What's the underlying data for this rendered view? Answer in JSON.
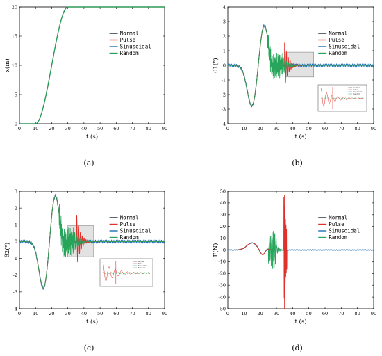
{
  "colors": {
    "normal": "#222222",
    "pulse": "#e0302b",
    "sinusoidal": "#1f6fb4",
    "random": "#27a55a"
  },
  "legend_labels": [
    "Normal",
    "Pulse",
    "Sinusoidal",
    "Random"
  ],
  "chart_data": [
    {
      "panel": "(a)",
      "type": "line",
      "xlabel": "t (s)",
      "ylabel": "x(m)",
      "xlim": [
        0,
        90
      ],
      "ylim": [
        0,
        20
      ],
      "xticks": [
        0,
        10,
        20,
        30,
        40,
        50,
        60,
        70,
        80,
        90
      ],
      "yticks": [
        0,
        5,
        10,
        15,
        20
      ],
      "legend": "upper-right",
      "series": [
        {
          "name": "Normal",
          "description": "smooth S-curve rising from 0 at t≈10 to 20 at t≈30, then constant"
        },
        {
          "name": "Pulse"
        },
        {
          "name": "Sinusoidal"
        },
        {
          "name": "Random"
        }
      ],
      "x": [
        0,
        10,
        12,
        14,
        16,
        18,
        20,
        22,
        24,
        26,
        28,
        30,
        40,
        50,
        60,
        70,
        80,
        90
      ],
      "y": [
        0,
        0,
        0.7,
        2.3,
        4.8,
        7.8,
        11.0,
        14.2,
        16.9,
        18.7,
        19.7,
        20,
        20,
        20,
        20,
        20,
        20,
        20
      ]
    },
    {
      "panel": "(b)",
      "type": "line",
      "xlabel": "t (s)",
      "ylabel": "θ1(°)",
      "xlim": [
        0,
        90
      ],
      "ylim": [
        -4,
        4
      ],
      "xticks": [
        0,
        10,
        20,
        30,
        40,
        50,
        60,
        70,
        80,
        90
      ],
      "yticks": [
        -4,
        -3,
        -2,
        -1,
        0,
        1,
        2,
        3,
        4
      ],
      "legend": "upper-right",
      "zoom_box": {
        "x": [
          36,
          53
        ],
        "y": [
          -0.8,
          0.9
        ]
      },
      "series": [
        {
          "name": "Normal"
        },
        {
          "name": "Pulse"
        },
        {
          "name": "Sinusoidal"
        },
        {
          "name": "Random"
        }
      ]
    },
    {
      "panel": "(c)",
      "type": "line",
      "xlabel": "t (s)",
      "ylabel": "θ2(°)",
      "xlim": [
        0,
        90
      ],
      "ylim": [
        -4,
        3
      ],
      "xticks": [
        0,
        10,
        20,
        30,
        40,
        50,
        60,
        70,
        80,
        90
      ],
      "yticks": [
        -4,
        -3,
        -2,
        -1,
        0,
        1,
        2,
        3
      ],
      "legend": "upper-right",
      "zoom_box": {
        "x": [
          30,
          46
        ],
        "y": [
          -0.9,
          0.95
        ]
      },
      "series": [
        {
          "name": "Normal"
        },
        {
          "name": "Pulse"
        },
        {
          "name": "Sinusoidal"
        },
        {
          "name": "Random"
        }
      ]
    },
    {
      "panel": "(d)",
      "type": "line",
      "xlabel": "t (s)",
      "ylabel": "F(N)",
      "xlim": [
        0,
        90
      ],
      "ylim": [
        -50,
        50
      ],
      "xticks": [
        0,
        10,
        20,
        30,
        40,
        50,
        60,
        70,
        80,
        90
      ],
      "yticks": [
        -50,
        -40,
        -30,
        -20,
        -10,
        0,
        10,
        20,
        30,
        40,
        50
      ],
      "legend": "upper-right",
      "series": [
        {
          "name": "Normal"
        },
        {
          "name": "Pulse"
        },
        {
          "name": "Sinusoidal"
        },
        {
          "name": "Random"
        }
      ]
    }
  ],
  "panels": [
    "(a)",
    "(b)",
    "(c)",
    "(d)"
  ]
}
